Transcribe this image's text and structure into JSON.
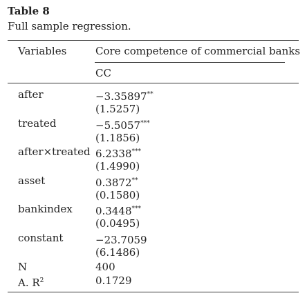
{
  "table": {
    "number": "Table 8",
    "caption": "Full sample regression."
  },
  "header": {
    "variables": "Variables",
    "group": "Core competence of commercial banks",
    "column": "CC"
  },
  "rows": [
    {
      "label": "after",
      "coef": "−3.35897",
      "stars": "**",
      "se": "(1.5257)"
    },
    {
      "label": "treated",
      "coef": "−5.5057",
      "stars": "***",
      "se": "(1.1856)"
    },
    {
      "label": "after×treated",
      "coef": "6.2338",
      "stars": "***",
      "se": "(1.4990)"
    },
    {
      "label": "asset",
      "coef": "0.3872",
      "stars": "**",
      "se": "(0.1580)"
    },
    {
      "label": "bankindex",
      "coef": "0.3448",
      "stars": "***",
      "se": "(0.0495)"
    },
    {
      "label": "constant",
      "coef": "−23.7059",
      "stars": "",
      "se": "(6.1486)"
    }
  ],
  "stats": {
    "n_label": "N",
    "n_value": "400",
    "r2_label": "A. R",
    "r2_sup": "2",
    "r2_value": "0.1729"
  }
}
